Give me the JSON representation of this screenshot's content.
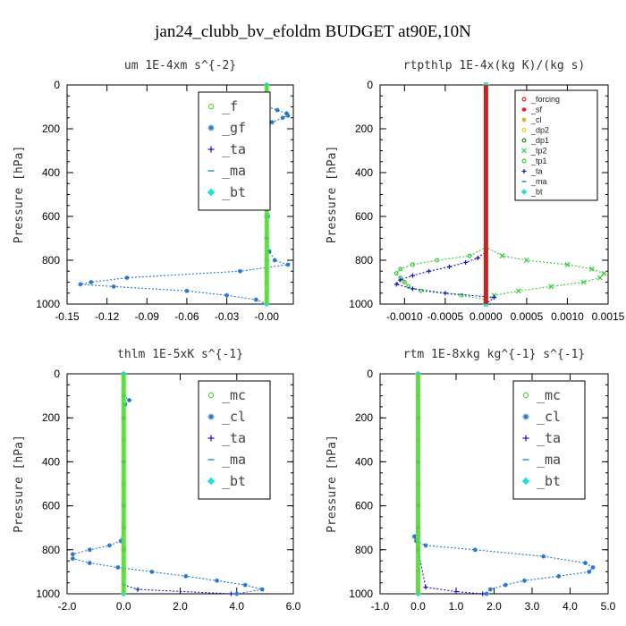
{
  "figure_title": "jan24_clubb_bv_efoldm  BUDGET at90E,10N",
  "chart_data": [
    {
      "type": "line",
      "title": "um  1E-4xm s^{-2}",
      "ylabel": "Pressure [hPa]",
      "ylim": [
        0,
        1000
      ],
      "yticks": [
        "0",
        "200",
        "400",
        "600",
        "800",
        "1000"
      ],
      "xlim": [
        -0.15,
        0.02
      ],
      "xticks": [
        {
          "v": -0.15,
          "t": "-0.15"
        },
        {
          "v": -0.12,
          "t": "-0.12"
        },
        {
          "v": -0.09,
          "t": "-0.09"
        },
        {
          "v": -0.06,
          "t": "-0.06"
        },
        {
          "v": -0.03,
          "t": "-0.03"
        },
        {
          "v": 0.0,
          "t": "-0.00"
        }
      ],
      "legend_style": "large",
      "legend_position": "top-right",
      "series": [
        {
          "name": "_f",
          "color": "#55dd33",
          "marker": "circle",
          "y": [
            0,
            100,
            200,
            300,
            400,
            500,
            600,
            700,
            800,
            850,
            900,
            950,
            1000
          ],
          "x": [
            0,
            0,
            0,
            0,
            0,
            0,
            0,
            0,
            0,
            0,
            0,
            0,
            0
          ]
        },
        {
          "name": "_gf",
          "color": "#2277cc",
          "marker": "star",
          "y": [
            0,
            100,
            115,
            130,
            140,
            150,
            170,
            200,
            300,
            400,
            500,
            600,
            700,
            760,
            800,
            820,
            850,
            880,
            900,
            910,
            920,
            940,
            960,
            980,
            1000
          ],
          "x": [
            0,
            0.001,
            0.008,
            0.015,
            0.016,
            0.012,
            0.004,
            0.001,
            0.001,
            0,
            0.001,
            0.001,
            0,
            0.002,
            0.006,
            0.016,
            -0.02,
            -0.105,
            -0.132,
            -0.14,
            -0.115,
            -0.06,
            -0.03,
            -0.008,
            0
          ]
        },
        {
          "name": "_ta",
          "color": "#1111cc",
          "marker": "plus",
          "y": [
            0,
            200,
            400,
            600,
            700,
            800,
            1000
          ],
          "x": [
            0,
            0,
            0,
            0,
            0,
            0,
            0
          ]
        },
        {
          "name": "_ma",
          "color": "#2299cc",
          "marker": "dash",
          "y": [
            0,
            200,
            400,
            600,
            800,
            1000
          ],
          "x": [
            0,
            0,
            0,
            0,
            0,
            0
          ]
        },
        {
          "name": "_bt",
          "color": "#22dddd",
          "marker": "diamond",
          "y": [
            0,
            200,
            400,
            600,
            800,
            1000
          ],
          "x": [
            0,
            0,
            0,
            0,
            0,
            0
          ]
        }
      ]
    },
    {
      "type": "line",
      "title": "rtpthlp  1E-4x(kg K)/(kg s)",
      "ylabel": "Pressure [hPa]",
      "ylim": [
        0,
        1000
      ],
      "yticks": [
        "0",
        "200",
        "400",
        "600",
        "800",
        "1000"
      ],
      "xlim": [
        -0.0013,
        0.0015
      ],
      "xticks": [
        {
          "v": -0.001,
          "t": "-0.0010"
        },
        {
          "v": -0.0005,
          "t": "-0.0005"
        },
        {
          "v": 0.0,
          "t": "0.0000"
        },
        {
          "v": 0.0005,
          "t": "0.0005"
        },
        {
          "v": 0.001,
          "t": "0.0010"
        },
        {
          "v": 0.0015,
          "t": "0.0015"
        }
      ],
      "legend_style": "small",
      "legend_position": "top-right",
      "series": [
        {
          "name": "_forcing",
          "color": "#dd2222",
          "marker": "circle",
          "y": [
            0,
            1000
          ],
          "x": [
            0,
            0
          ]
        },
        {
          "name": "_sf",
          "color": "#dd2222",
          "marker": "star",
          "y": [
            0,
            1000
          ],
          "x": [
            0,
            0
          ]
        },
        {
          "name": "_cl",
          "color": "#ddaa22",
          "marker": "star",
          "y": [
            0,
            1000
          ],
          "x": [
            0,
            0
          ]
        },
        {
          "name": "_dp2",
          "color": "#ddcc22",
          "marker": "circle",
          "y": [
            0,
            1000
          ],
          "x": [
            0,
            0
          ]
        },
        {
          "name": "_dp1",
          "color": "#228822",
          "marker": "circle",
          "y": [
            0,
            1000
          ],
          "x": [
            0,
            0
          ]
        },
        {
          "name": "_tp2",
          "color": "#33cc33",
          "marker": "cross",
          "y": [
            0,
            740,
            780,
            800,
            820,
            840,
            860,
            880,
            900,
            920,
            940,
            960,
            980,
            1000
          ],
          "x": [
            0,
            0,
            0.0002,
            0.0005,
            0.001,
            0.0013,
            0.00145,
            0.0014,
            0.0012,
            0.0008,
            0.0004,
            0.0001,
            0,
            0
          ]
        },
        {
          "name": "_tp1",
          "color": "#33cc33",
          "marker": "circle",
          "y": [
            0,
            740,
            780,
            800,
            820,
            840,
            860,
            880,
            900,
            920,
            940,
            960,
            980,
            1000
          ],
          "x": [
            0,
            0,
            -0.0002,
            -0.0006,
            -0.0009,
            -0.00105,
            -0.0011,
            -0.00105,
            -0.001,
            -0.00095,
            -0.0008,
            -0.0003,
            0,
            0
          ]
        },
        {
          "name": "_ta",
          "color": "#1111cc",
          "marker": "plus",
          "y": [
            0,
            760,
            790,
            810,
            830,
            850,
            870,
            890,
            910,
            930,
            950,
            970,
            1000
          ],
          "x": [
            0,
            0,
            -0.0001,
            -0.00025,
            -0.00045,
            -0.0007,
            -0.0009,
            -0.00105,
            -0.0011,
            -0.0009,
            -0.0005,
            0.0001,
            0
          ]
        },
        {
          "name": "_ma",
          "color": "#2299cc",
          "marker": "dash",
          "y": [
            0,
            1000
          ],
          "x": [
            0,
            0
          ]
        },
        {
          "name": "_bt",
          "color": "#22dddd",
          "marker": "diamond",
          "y": [
            0,
            1000
          ],
          "x": [
            0,
            0
          ]
        }
      ]
    },
    {
      "type": "line",
      "title": "thlm  1E-5xK s^{-1}",
      "ylabel": "Pressure [hPa]",
      "ylim": [
        0,
        1000
      ],
      "yticks": [
        "0",
        "200",
        "400",
        "600",
        "800",
        "1000"
      ],
      "xlim": [
        -2.0,
        6.0
      ],
      "xticks": [
        {
          "v": -2.0,
          "t": "-2.0"
        },
        {
          "v": 0.0,
          "t": "0.0"
        },
        {
          "v": 2.0,
          "t": "2.0"
        },
        {
          "v": 4.0,
          "t": "4.0"
        },
        {
          "v": 6.0,
          "t": "6.0"
        }
      ],
      "legend_style": "large",
      "legend_position": "top-right",
      "series": [
        {
          "name": "_mc",
          "color": "#55dd33",
          "marker": "circle",
          "y": [
            0,
            100,
            200,
            300,
            400,
            500,
            600,
            700,
            800,
            900,
            1000
          ],
          "x": [
            0,
            0,
            0,
            0,
            0,
            0,
            0,
            0,
            0,
            0,
            0
          ]
        },
        {
          "name": "_cl",
          "color": "#2277cc",
          "marker": "star",
          "y": [
            0,
            100,
            120,
            140,
            200,
            400,
            600,
            700,
            760,
            780,
            800,
            820,
            840,
            860,
            880,
            900,
            920,
            940,
            960,
            980,
            1000
          ],
          "x": [
            0,
            0,
            0.2,
            0.05,
            0,
            0,
            0,
            0,
            -0.1,
            -0.5,
            -1.2,
            -1.8,
            -1.8,
            -1.2,
            -0.2,
            1.0,
            2.2,
            3.3,
            4.3,
            4.9,
            4.0
          ]
        },
        {
          "name": "_ta",
          "color": "#1111cc",
          "marker": "plus",
          "y": [
            0,
            400,
            800,
            960,
            980,
            1000
          ],
          "x": [
            0,
            0,
            0,
            0,
            0.5,
            3.8
          ]
        },
        {
          "name": "_ma",
          "color": "#2299cc",
          "marker": "dash",
          "y": [
            0,
            1000
          ],
          "x": [
            0,
            0
          ]
        },
        {
          "name": "_bt",
          "color": "#22dddd",
          "marker": "diamond",
          "y": [
            0,
            1000
          ],
          "x": [
            0,
            0
          ]
        }
      ]
    },
    {
      "type": "line",
      "title": "rtm  1E-8xkg kg^{-1} s^{-1}",
      "ylabel": "Pressure [hPa]",
      "ylim": [
        0,
        1000
      ],
      "yticks": [
        "0",
        "200",
        "400",
        "600",
        "800",
        "1000"
      ],
      "xlim": [
        -1.0,
        5.0
      ],
      "xticks": [
        {
          "v": -1.0,
          "t": "-1.0"
        },
        {
          "v": 0.0,
          "t": "0.0"
        },
        {
          "v": 1.0,
          "t": "1.0"
        },
        {
          "v": 2.0,
          "t": "2.0"
        },
        {
          "v": 3.0,
          "t": "3.0"
        },
        {
          "v": 4.0,
          "t": "4.0"
        },
        {
          "v": 5.0,
          "t": "5.0"
        }
      ],
      "legend_style": "large",
      "legend_position": "top-right",
      "series": [
        {
          "name": "_mc",
          "color": "#55dd33",
          "marker": "circle",
          "y": [
            0,
            100,
            200,
            300,
            400,
            500,
            600,
            700,
            800,
            900,
            1000
          ],
          "x": [
            0,
            0,
            0,
            0,
            0,
            0,
            0,
            0,
            0,
            0,
            0
          ]
        },
        {
          "name": "_cl",
          "color": "#2277cc",
          "marker": "star",
          "y": [
            0,
            200,
            400,
            600,
            700,
            740,
            760,
            780,
            800,
            830,
            860,
            880,
            900,
            920,
            940,
            960,
            980,
            1000
          ],
          "x": [
            0,
            0,
            0,
            0,
            0,
            -0.1,
            -0.05,
            0.2,
            1.5,
            3.3,
            4.4,
            4.6,
            4.5,
            3.7,
            2.8,
            2.3,
            1.9,
            1.8
          ]
        },
        {
          "name": "_ta",
          "color": "#1111cc",
          "marker": "plus",
          "y": [
            0,
            400,
            800,
            970,
            990,
            1000
          ],
          "x": [
            0,
            0,
            0,
            0.2,
            1.0,
            1.7
          ]
        },
        {
          "name": "_ma",
          "color": "#2299cc",
          "marker": "dash",
          "y": [
            0,
            1000
          ],
          "x": [
            0,
            0
          ]
        },
        {
          "name": "_bt",
          "color": "#22dddd",
          "marker": "diamond",
          "y": [
            0,
            1000
          ],
          "x": [
            0,
            0
          ]
        }
      ]
    }
  ]
}
